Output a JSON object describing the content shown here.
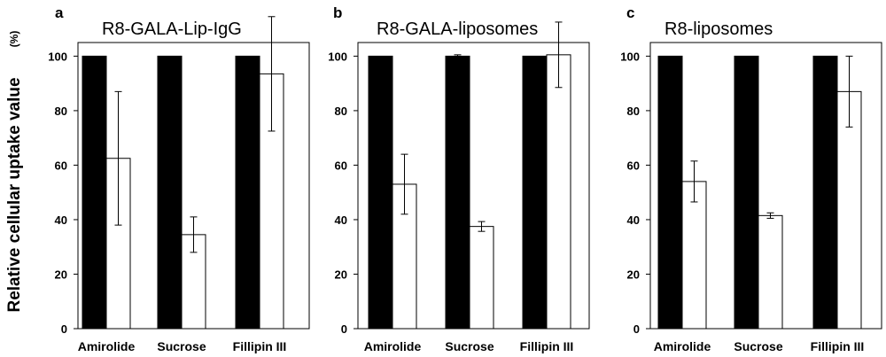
{
  "ylabel": "Relative cellular uptake value",
  "ylabel_unit": "(%)",
  "colors": {
    "control": "#000000",
    "treated": "#ffffff",
    "axis": "#000000"
  },
  "chart_data": [
    {
      "type": "bar",
      "letter": "a",
      "title": "R8-GALA-Lip-IgG",
      "categories": [
        "Amirolide",
        "Sucrose",
        "Fillipin III"
      ],
      "series": [
        {
          "values": [
            100,
            100,
            100
          ],
          "error": [
            0,
            0,
            0
          ],
          "color": "#000000"
        },
        {
          "values": [
            62.5,
            34.5,
            93.5
          ],
          "error": [
            24.5,
            6.5,
            21
          ],
          "color": "#ffffff"
        }
      ],
      "ylim": [
        0,
        100
      ],
      "yticks": [
        0,
        20,
        40,
        60,
        80,
        100
      ],
      "grid": false
    },
    {
      "type": "bar",
      "letter": "b",
      "title": "R8-GALA-liposomes",
      "categories": [
        "Amirolide",
        "Sucrose",
        "Fillipin III"
      ],
      "series": [
        {
          "values": [
            100,
            100,
            100
          ],
          "error": [
            0,
            0.5,
            0
          ],
          "color": "#000000"
        },
        {
          "values": [
            53,
            37.5,
            100.5
          ],
          "error": [
            11,
            1.8,
            12
          ],
          "color": "#ffffff"
        }
      ],
      "ylim": [
        0,
        100
      ],
      "yticks": [
        0,
        20,
        40,
        60,
        80,
        100
      ],
      "grid": false
    },
    {
      "type": "bar",
      "letter": "c",
      "title": "R8-liposomes",
      "categories": [
        "Amirolide",
        "Sucrose",
        "Fillipin III"
      ],
      "series": [
        {
          "values": [
            100,
            100,
            100
          ],
          "error": [
            0,
            0,
            0
          ],
          "color": "#000000"
        },
        {
          "values": [
            54,
            41.5,
            87
          ],
          "error": [
            7.5,
            1,
            13
          ],
          "color": "#ffffff"
        }
      ],
      "ylim": [
        0,
        100
      ],
      "yticks": [
        0,
        20,
        40,
        60,
        80,
        100
      ],
      "grid": false
    }
  ]
}
